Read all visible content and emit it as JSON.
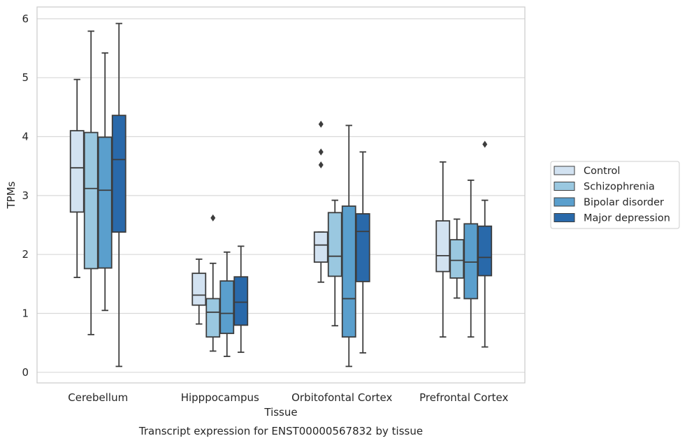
{
  "caption": "Transcript expression for ENST00000567832 by tissue",
  "chart_data": {
    "type": "box",
    "xlabel": "Tissue",
    "ylabel": "TPMs",
    "ylim": [
      -0.18,
      6.2
    ],
    "yticks": [
      0,
      1,
      2,
      3,
      4,
      5,
      6
    ],
    "grid": true,
    "legend_position": "center-right",
    "categories": [
      "Cerebellum",
      "Hipppocampus",
      "Orbitofontal Cortex",
      "Prefrontal Cortex"
    ],
    "series": [
      {
        "name": "Control",
        "color": "#d2e2f1",
        "boxes": [
          {
            "whislo": 1.61,
            "q1": 2.72,
            "med": 3.47,
            "q3": 4.1,
            "whishi": 4.97,
            "fliers": []
          },
          {
            "whislo": 0.82,
            "q1": 1.14,
            "med": 1.31,
            "q3": 1.68,
            "whishi": 1.92,
            "fliers": []
          },
          {
            "whislo": 1.53,
            "q1": 1.87,
            "med": 2.16,
            "q3": 2.38,
            "whishi": 2.38,
            "fliers": [
              3.52,
              3.74,
              4.21
            ]
          },
          {
            "whislo": 0.6,
            "q1": 1.71,
            "med": 1.98,
            "q3": 2.57,
            "whishi": 3.57,
            "fliers": []
          }
        ]
      },
      {
        "name": "Schizophrenia",
        "color": "#9ac8e0",
        "boxes": [
          {
            "whislo": 0.64,
            "q1": 1.76,
            "med": 3.12,
            "q3": 4.07,
            "whishi": 5.79,
            "fliers": []
          },
          {
            "whislo": 0.36,
            "q1": 0.6,
            "med": 1.02,
            "q3": 1.25,
            "whishi": 1.85,
            "fliers": [
              2.62
            ]
          },
          {
            "whislo": 0.79,
            "q1": 1.63,
            "med": 1.97,
            "q3": 2.71,
            "whishi": 2.92,
            "fliers": []
          },
          {
            "whislo": 1.26,
            "q1": 1.6,
            "med": 1.9,
            "q3": 2.25,
            "whishi": 2.6,
            "fliers": []
          }
        ]
      },
      {
        "name": "Bipolar disorder",
        "color": "#5a9fcd",
        "boxes": [
          {
            "whislo": 1.05,
            "q1": 1.77,
            "med": 3.09,
            "q3": 3.99,
            "whishi": 5.42,
            "fliers": []
          },
          {
            "whislo": 0.27,
            "q1": 0.66,
            "med": 1.0,
            "q3": 1.55,
            "whishi": 2.04,
            "fliers": []
          },
          {
            "whislo": 0.1,
            "q1": 0.6,
            "med": 1.25,
            "q3": 2.82,
            "whishi": 4.19,
            "fliers": []
          },
          {
            "whislo": 0.6,
            "q1": 1.25,
            "med": 1.87,
            "q3": 2.52,
            "whishi": 3.26,
            "fliers": []
          }
        ]
      },
      {
        "name": "Major depression",
        "color": "#2969aa",
        "boxes": [
          {
            "whislo": 0.1,
            "q1": 2.38,
            "med": 3.61,
            "q3": 4.36,
            "whishi": 5.92,
            "fliers": []
          },
          {
            "whislo": 0.34,
            "q1": 0.8,
            "med": 1.19,
            "q3": 1.62,
            "whishi": 2.14,
            "fliers": []
          },
          {
            "whislo": 0.33,
            "q1": 1.54,
            "med": 2.39,
            "q3": 2.69,
            "whishi": 3.74,
            "fliers": []
          },
          {
            "whislo": 0.43,
            "q1": 1.64,
            "med": 1.95,
            "q3": 2.48,
            "whishi": 2.92,
            "fliers": [
              3.87
            ]
          }
        ]
      }
    ]
  }
}
